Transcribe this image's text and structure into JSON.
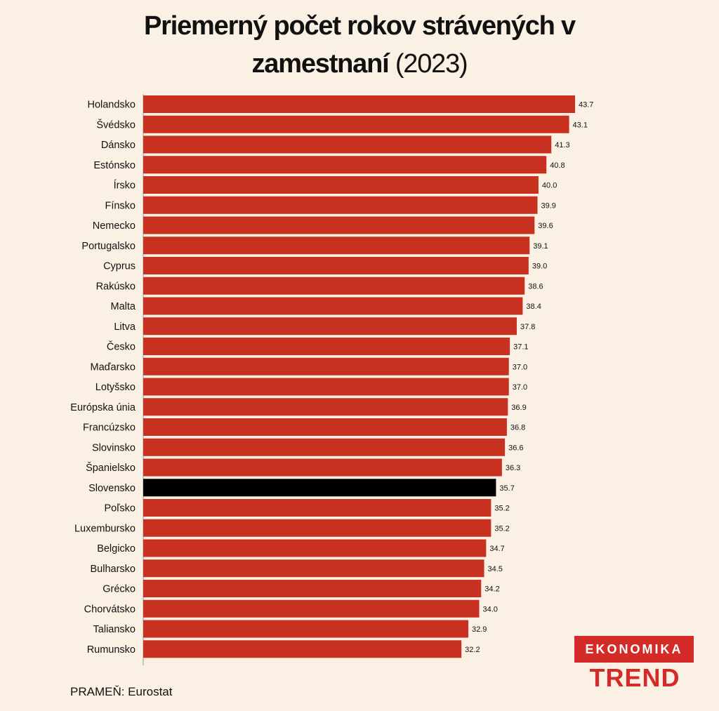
{
  "title": {
    "main_line1": "Priemerný počet rokov strávených v",
    "main_line2": "zamestnaní",
    "year": "(2023)"
  },
  "source": "PRAMEŇ: Eurostat",
  "logo": {
    "top": "EKONOMIKA",
    "bottom": "TREND"
  },
  "colors": {
    "bar": "#c8311f",
    "highlight": "#000000",
    "background": "#fbf0e4"
  },
  "chart_data": {
    "type": "bar",
    "orientation": "horizontal",
    "categories": [
      "Holandsko",
      "Švédsko",
      "Dánsko",
      "Estónsko",
      "Írsko",
      "Fínsko",
      "Nemecko",
      "Portugalsko",
      "Cyprus",
      "Rakúsko",
      "Malta",
      "Litva",
      "Česko",
      "Maďarsko",
      "Lotyšsko",
      "Európska únia",
      "Francúzsko",
      "Slovinsko",
      "Španielsko",
      "Slovensko",
      "Poľsko",
      "Luxembursko",
      "Belgicko",
      "Bulharsko",
      "Grécko",
      "Chorvátsko",
      "Taliansko",
      "Rumunsko"
    ],
    "values": [
      43.7,
      43.1,
      41.3,
      40.8,
      40.0,
      39.9,
      39.6,
      39.1,
      39.0,
      38.6,
      38.4,
      37.8,
      37.1,
      37.0,
      37.0,
      36.9,
      36.8,
      36.6,
      36.3,
      35.7,
      35.2,
      35.2,
      34.7,
      34.5,
      34.2,
      34.0,
      32.9,
      32.2
    ],
    "value_labels": [
      "43.7",
      "43.1",
      "41.3",
      "40.8",
      "40.0",
      "39.9",
      "39.6",
      "39.1",
      "39.0",
      "38.6",
      "38.4",
      "37.8",
      "37.1",
      "37.0",
      "37.0",
      "36.9",
      "36.8",
      "36.6",
      "36.3",
      "35.7",
      "35.2",
      "35.2",
      "34.7",
      "34.5",
      "34.2",
      "34.0",
      "32.9",
      "32.2"
    ],
    "highlight": "Slovensko",
    "xlim": [
      0,
      43.7
    ],
    "grid": false
  }
}
